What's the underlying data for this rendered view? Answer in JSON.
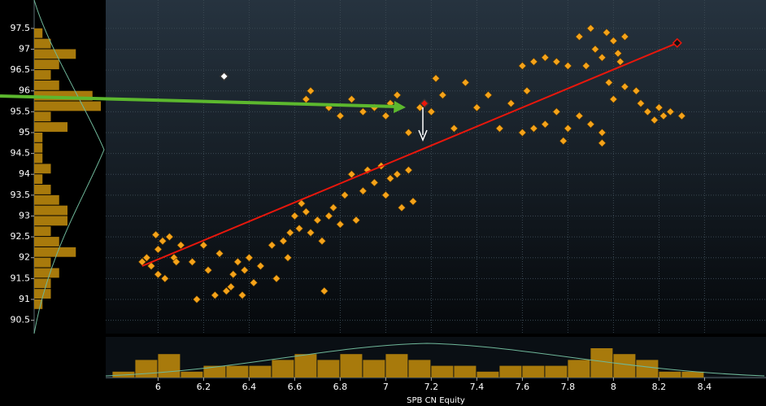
{
  "chart_data": {
    "type": "scatter",
    "x_label": "SPB CN Equity",
    "xlim": [
      5.77,
      8.67
    ],
    "ylim": [
      90.18,
      98.18
    ],
    "xticks": [
      6,
      6.2,
      6.4,
      6.6,
      6.8,
      7,
      7.2,
      7.4,
      7.6,
      7.8,
      8,
      8.2,
      8.4
    ],
    "yticks": [
      90.5,
      91,
      91.5,
      92,
      92.5,
      93,
      93.5,
      94,
      94.5,
      95,
      95.5,
      96,
      96.5,
      97,
      97.5
    ],
    "grid": true,
    "color": "#f5a31a",
    "x": [
      5.93,
      5.95,
      5.97,
      6.0,
      6.0,
      5.99,
      6.02,
      6.03,
      6.05,
      6.07,
      6.08,
      6.1,
      6.15,
      6.2,
      6.17,
      6.22,
      6.25,
      6.27,
      6.3,
      6.32,
      6.33,
      6.35,
      6.37,
      6.38,
      6.4,
      6.42,
      6.45,
      6.5,
      6.52,
      6.55,
      6.57,
      6.58,
      6.6,
      6.62,
      6.63,
      6.65,
      6.67,
      6.7,
      6.72,
      6.73,
      6.75,
      6.77,
      6.8,
      6.82,
      6.85,
      6.87,
      6.9,
      6.92,
      6.95,
      6.98,
      7.0,
      7.02,
      7.05,
      7.07,
      7.1,
      7.12,
      6.65,
      6.67,
      6.75,
      6.8,
      6.85,
      6.9,
      6.95,
      7.0,
      7.02,
      7.05,
      7.1,
      7.15,
      7.2,
      7.22,
      7.25,
      7.3,
      7.35,
      7.4,
      7.45,
      7.5,
      7.55,
      7.6,
      7.62,
      7.65,
      7.7,
      7.75,
      7.8,
      7.6,
      7.65,
      7.7,
      7.75,
      7.8,
      7.85,
      7.9,
      7.95,
      7.78,
      7.95,
      7.85,
      7.9,
      7.92,
      7.95,
      7.97,
      8.0,
      8.02,
      8.05,
      8.03,
      7.88,
      7.98,
      8.0,
      8.05,
      8.1,
      8.12,
      8.15,
      8.18,
      8.2,
      8.22,
      8.25,
      8.3
    ],
    "y": [
      91.9,
      92.0,
      91.8,
      92.2,
      91.6,
      92.55,
      92.4,
      91.5,
      92.5,
      92.0,
      91.9,
      92.3,
      91.9,
      92.3,
      91.0,
      91.7,
      91.1,
      92.1,
      91.2,
      91.3,
      91.6,
      91.9,
      91.1,
      91.7,
      92.0,
      91.4,
      91.8,
      92.3,
      91.5,
      92.4,
      92.0,
      92.6,
      93.0,
      92.7,
      93.3,
      93.1,
      92.6,
      92.9,
      92.4,
      91.2,
      93.0,
      93.2,
      92.8,
      93.5,
      94.0,
      92.9,
      93.6,
      94.1,
      93.8,
      94.2,
      93.5,
      93.9,
      94.0,
      93.2,
      94.1,
      93.35,
      95.8,
      96.0,
      95.6,
      95.4,
      95.8,
      95.5,
      95.6,
      95.4,
      95.7,
      95.9,
      95.0,
      95.6,
      95.5,
      96.3,
      95.9,
      95.1,
      96.2,
      95.6,
      95.9,
      95.1,
      95.7,
      96.6,
      96.0,
      96.7,
      96.8,
      96.7,
      96.6,
      95.0,
      95.1,
      95.2,
      95.5,
      95.1,
      95.4,
      95.2,
      95.0,
      94.8,
      94.75,
      97.3,
      97.5,
      97.0,
      96.8,
      97.4,
      97.2,
      96.9,
      97.3,
      96.7,
      96.6,
      96.2,
      95.8,
      96.1,
      96.0,
      95.7,
      95.5,
      95.3,
      95.6,
      95.4,
      95.5,
      95.4
    ],
    "fit": {
      "x": [
        5.93,
        8.28
      ],
      "y": [
        91.8,
        97.15
      ],
      "color": "#e8170c"
    },
    "special_points": [
      {
        "x": 6.29,
        "y": 96.35,
        "color": "#ffffff"
      },
      {
        "x": 7.17,
        "y": 95.7,
        "color": "#e8170c"
      },
      {
        "x": 8.28,
        "y": 97.15,
        "color": "#111111"
      }
    ],
    "x_hist": {
      "bins": [
        5.8,
        5.9,
        6.0,
        6.1,
        6.2,
        6.3,
        6.4,
        6.5,
        6.6,
        6.7,
        6.8,
        6.9,
        7.0,
        7.1,
        7.2,
        7.3,
        7.4,
        7.5,
        7.6,
        7.7,
        7.8,
        7.9,
        8.0,
        8.1,
        8.2,
        8.3,
        8.4
      ],
      "counts": [
        1,
        3,
        4,
        1,
        2,
        2,
        2,
        3,
        4,
        3,
        4,
        3,
        4,
        3,
        2,
        2,
        1,
        2,
        2,
        2,
        3,
        5,
        4,
        3,
        1,
        1
      ],
      "color": "#a87a0c"
    },
    "y_hist": {
      "bins": [
        90.75,
        91.0,
        91.25,
        91.5,
        91.75,
        92.0,
        92.25,
        92.5,
        92.75,
        93.0,
        93.25,
        93.5,
        93.75,
        94.0,
        94.25,
        94.5,
        94.75,
        95.0,
        95.25,
        95.5,
        95.75,
        96.0,
        96.25,
        96.5,
        96.75,
        97.0,
        97.25,
        97.5
      ],
      "counts": [
        1,
        2,
        2,
        3,
        2,
        5,
        3,
        2,
        4,
        4,
        3,
        2,
        1,
        2,
        1,
        1,
        1,
        4,
        2,
        8,
        7,
        3,
        2,
        3,
        5,
        2,
        1
      ],
      "color": "#a87a0c"
    }
  }
}
